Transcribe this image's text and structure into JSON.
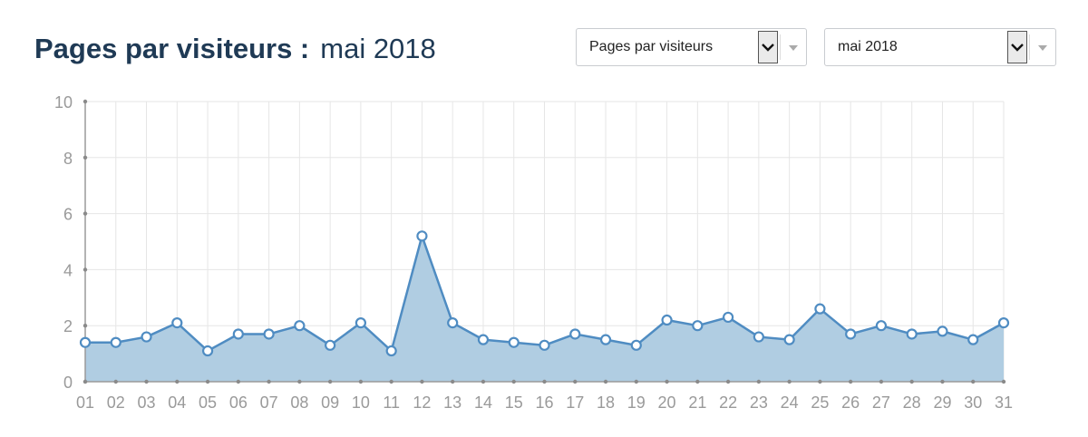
{
  "header": {
    "title": "Pages par visiteurs :",
    "subtitle": "mai 2018"
  },
  "controls": {
    "metric_select": "Pages par visiteurs",
    "month_select": "mai 2018"
  },
  "colors": {
    "title": "#1f3a55",
    "line": "#4f8cc2",
    "area": "#b0cde2",
    "grid": "#e6e6e6",
    "tick_text": "#9a9a9a"
  },
  "chart_data": {
    "type": "area",
    "categories": [
      "01",
      "02",
      "03",
      "04",
      "05",
      "06",
      "07",
      "08",
      "09",
      "10",
      "11",
      "12",
      "13",
      "14",
      "15",
      "16",
      "17",
      "18",
      "19",
      "20",
      "21",
      "22",
      "23",
      "24",
      "25",
      "26",
      "27",
      "28",
      "29",
      "30",
      "31"
    ],
    "series": [
      {
        "values": [
          1.4,
          1.4,
          1.6,
          2.1,
          1.1,
          1.7,
          1.7,
          2.0,
          1.3,
          2.1,
          1.1,
          5.2,
          2.1,
          1.5,
          1.4,
          1.3,
          1.7,
          1.5,
          1.3,
          2.2,
          2.0,
          2.3,
          1.6,
          1.5,
          2.6,
          1.7,
          2.0,
          1.7,
          1.8,
          1.5,
          2.1
        ]
      }
    ],
    "yticks": [
      0,
      2,
      4,
      6,
      8,
      10
    ],
    "ylim": [
      0,
      10
    ],
    "grid": true,
    "markers": "hollow-circle",
    "legend": "none"
  }
}
